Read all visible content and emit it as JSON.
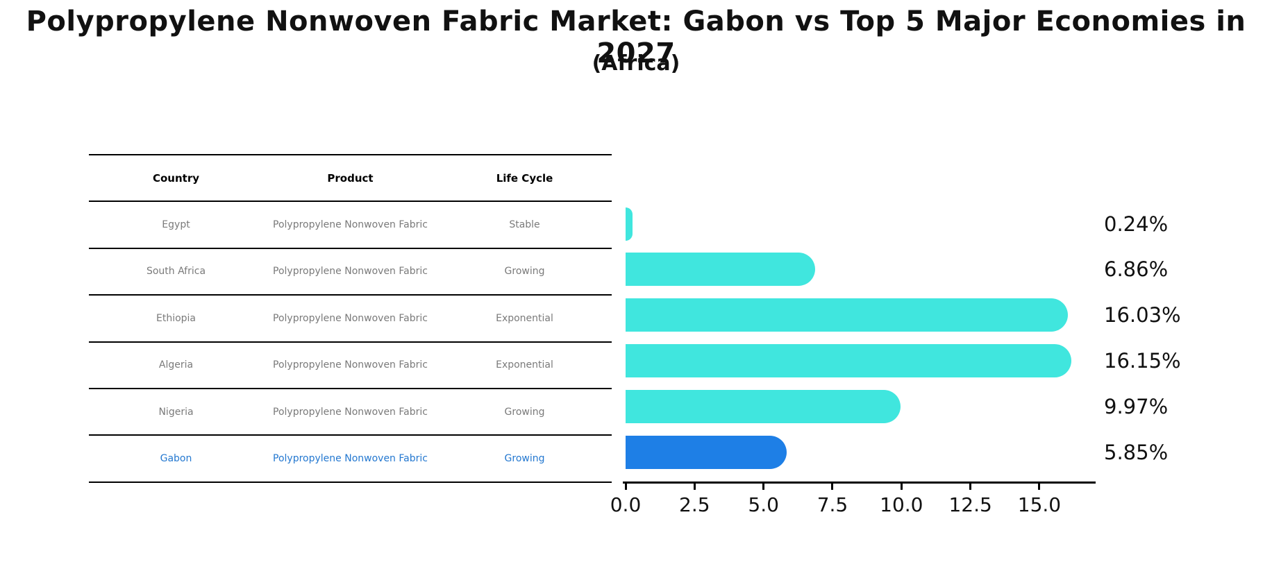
{
  "title": "Polypropylene Nonwoven Fabric Market: Gabon vs Top 5 Major Economies in 2027",
  "subtitle": "(Africa)",
  "table": {
    "headers": [
      "Country",
      "Product",
      "Life Cycle"
    ],
    "rows": [
      {
        "country": "Egypt",
        "product": "Polypropylene Nonwoven Fabric",
        "life_cycle": "Stable",
        "highlight": false
      },
      {
        "country": "South Africa",
        "product": "Polypropylene Nonwoven Fabric",
        "life_cycle": "Growing",
        "highlight": false
      },
      {
        "country": "Ethiopia",
        "product": "Polypropylene Nonwoven Fabric",
        "life_cycle": "Exponential",
        "highlight": false
      },
      {
        "country": "Algeria",
        "product": "Polypropylene Nonwoven Fabric",
        "life_cycle": "Exponential",
        "highlight": false
      },
      {
        "country": "Nigeria",
        "product": "Polypropylene Nonwoven Fabric",
        "life_cycle": "Growing",
        "highlight": false
      },
      {
        "country": "Gabon",
        "product": "Polypropylene Nonwoven Fabric",
        "life_cycle": "Growing",
        "highlight": true
      }
    ]
  },
  "chart_data": {
    "type": "bar",
    "orientation": "horizontal",
    "title": "Polypropylene Nonwoven Fabric Market: Gabon vs Top 5 Major Economies in 2027 (Africa)",
    "categories": [
      "Egypt",
      "South Africa",
      "Ethiopia",
      "Algeria",
      "Nigeria",
      "Gabon"
    ],
    "values": [
      0.24,
      6.86,
      16.03,
      16.15,
      9.97,
      5.85
    ],
    "value_labels": [
      "0.24%",
      "6.86%",
      "16.03%",
      "16.15%",
      "9.97%",
      "5.85%"
    ],
    "xlabel": "",
    "ylabel": "",
    "xlim": [
      0.0,
      17.1
    ],
    "xticks": [
      0.0,
      2.5,
      5.0,
      7.5,
      10.0,
      12.5,
      15.0
    ],
    "xtick_labels": [
      "0.0",
      "2.5",
      "5.0",
      "7.5",
      "10.0",
      "12.5",
      "15.0"
    ],
    "grid": false,
    "legend": null,
    "bar_color": "#40E6DE",
    "highlight_color": "#1E7FE6",
    "highlight_border_color": "#1E7FE6",
    "highlight_index": 5
  },
  "colors": {
    "title_text": "#111111",
    "table_text": "#7a7a7a",
    "table_header_text": "#000000",
    "highlight_text": "#2478d0",
    "axis": "#000000"
  }
}
